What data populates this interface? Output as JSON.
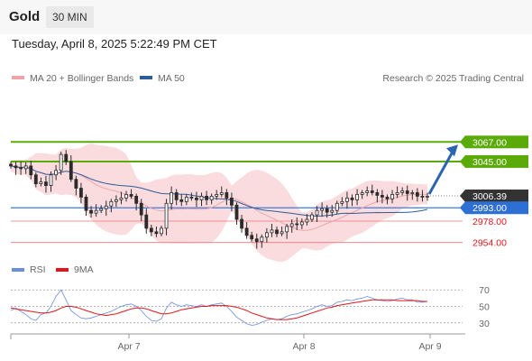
{
  "header": {
    "asset": "Gold",
    "timeframe": "30 MIN",
    "datetime": "Tuesday, April 8, 2025 5:22:49 PM CET",
    "copyright": "Research © 2025 Trading Central"
  },
  "colors": {
    "bollinger_band": "#f8d0d3",
    "ma20": "#f1a3a8",
    "ma50": "#2e5c99",
    "resistance": "#5aab0a",
    "support": "#e8787c",
    "pivot": "#3a7de0",
    "arrow": "#2a66b0",
    "candle": "#2b2b2b",
    "rsi": "#6a8ed8",
    "rsi_ma": "#e0161c"
  },
  "chart_data": [
    {
      "type": "candlestick",
      "legend": [
        "MA 20 + Bollinger Bands",
        "MA 50"
      ],
      "x_tick_labels": [
        "Apr 7",
        "Apr 8",
        "Apr 9"
      ],
      "y_range": [
        2935,
        3100
      ],
      "current_price": 3006.39,
      "pivot": 2993.0,
      "resistance": [
        3067.0,
        3045.0
      ],
      "support": [
        2978.0,
        2954.0
      ],
      "price_labels": [
        "3067.00",
        "3045.00",
        "3006.39",
        "2993.00",
        "2978.00",
        "2954.00"
      ],
      "arrow_target": 3067.0,
      "closes": [
        3040,
        3038,
        3037,
        3040,
        3030,
        3020,
        3022,
        3018,
        3030,
        3035,
        3053,
        3045,
        3025,
        3015,
        3005,
        2990,
        2987,
        2990,
        2992,
        2995,
        3000,
        3002,
        3004,
        3008,
        3006,
        2998,
        2985,
        2970,
        2966,
        2964,
        2970,
        2998,
        3010,
        3002,
        3000,
        3005,
        3004,
        3002,
        3006,
        3002,
        3006,
        3008,
        3010,
        3004,
        2996,
        2980,
        2970,
        2962,
        2958,
        2955,
        2960,
        2965,
        2968,
        2964,
        2966,
        2972,
        2975,
        2974,
        2977,
        2980,
        2985,
        2990,
        2992,
        2988,
        2990,
        2998,
        3000,
        3004,
        3002,
        3008,
        3010,
        3012,
        3010,
        3007,
        3005,
        3003,
        3008,
        3010,
        3012,
        3009,
        3010,
        3006,
        3005,
        3006
      ]
    },
    {
      "type": "line",
      "legend": [
        "RSI",
        "9MA"
      ],
      "y_tick_labels": [
        "70",
        "50",
        "30"
      ],
      "y_range": [
        20,
        80
      ],
      "levels": [
        70,
        50,
        30
      ],
      "series": [
        {
          "name": "RSI",
          "values": [
            45,
            48,
            44,
            40,
            35,
            33,
            40,
            42,
            50,
            62,
            70,
            58,
            45,
            40,
            36,
            35,
            36,
            38,
            40,
            42,
            44,
            47,
            50,
            52,
            53,
            50,
            45,
            38,
            33,
            32,
            35,
            48,
            55,
            52,
            50,
            52,
            51,
            50,
            52,
            50,
            52,
            53,
            54,
            50,
            44,
            37,
            33,
            29,
            27,
            28,
            31,
            33,
            35,
            34,
            35,
            38,
            40,
            41,
            43,
            45,
            47,
            50,
            52,
            50,
            51,
            55,
            56,
            58,
            57,
            59,
            60,
            62,
            60,
            58,
            57,
            56,
            57,
            59,
            60,
            58,
            58,
            55,
            55,
            56
          ]
        },
        {
          "name": "9MA",
          "values": [
            48,
            47,
            46,
            45,
            44,
            43,
            42,
            42,
            43,
            45,
            48,
            50,
            50,
            49,
            47,
            45,
            43,
            41,
            40,
            39,
            40,
            41,
            43,
            45,
            47,
            48,
            48,
            47,
            45,
            43,
            41,
            41,
            42,
            44,
            46,
            47,
            48,
            49,
            50,
            50,
            51,
            51,
            51,
            51,
            50,
            49,
            47,
            45,
            42,
            40,
            38,
            36,
            35,
            34,
            34,
            34,
            35,
            36,
            38,
            40,
            42,
            44,
            46,
            48,
            49,
            51,
            52,
            53,
            54,
            55,
            56,
            57,
            58,
            58,
            58,
            58,
            58,
            57,
            57,
            57,
            57,
            57,
            56,
            56
          ]
        }
      ]
    }
  ]
}
